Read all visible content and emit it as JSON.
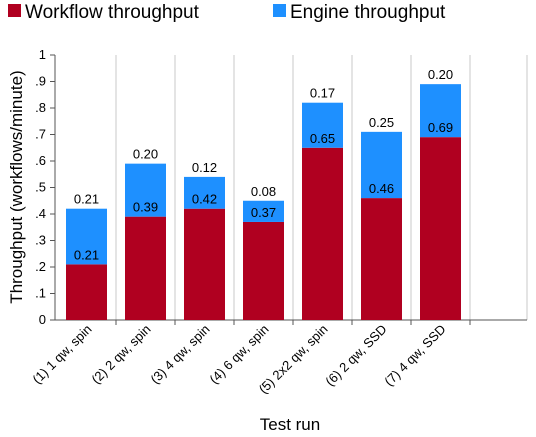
{
  "chart_data": {
    "type": "bar",
    "stacked": true,
    "title": "",
    "xlabel": "Test run",
    "ylabel": "Throughput (workflows/minute)",
    "ylim": [
      0,
      1
    ],
    "yticks": [
      0,
      0.1,
      0.2,
      0.3,
      0.4,
      0.5,
      0.6,
      0.7,
      0.8,
      0.9,
      1
    ],
    "ytick_labels": [
      "0",
      ".1",
      ".2",
      ".3",
      ".4",
      ".5",
      ".6",
      ".7",
      ".8",
      ".9",
      "1"
    ],
    "grid": "vertical lines between categories",
    "legend": "top",
    "categories": [
      "(1) 1 qw, spin",
      "(2) 2 qw, spin",
      "(3) 4 qw, spin",
      "(4) 6 qw, spin",
      "(5) 2x2 qw, spin",
      "(6) 2 qw, SSD",
      "(7) 4 qw, SSD"
    ],
    "series": [
      {
        "name": "Workflow throughput",
        "color": "#B00020",
        "values": [
          0.21,
          0.39,
          0.42,
          0.37,
          0.65,
          0.46,
          0.69
        ],
        "labels": [
          "0.21",
          "0.39",
          "0.42",
          "0.37",
          "0.65",
          "0.46",
          "0.69"
        ]
      },
      {
        "name": "Engine throughput",
        "color": "#1E90FF",
        "values": [
          0.21,
          0.2,
          0.12,
          0.08,
          0.17,
          0.25,
          0.2
        ],
        "labels": [
          "0.21",
          "0.20",
          "0.12",
          "0.08",
          "0.17",
          "0.25",
          "0.20"
        ]
      }
    ]
  }
}
